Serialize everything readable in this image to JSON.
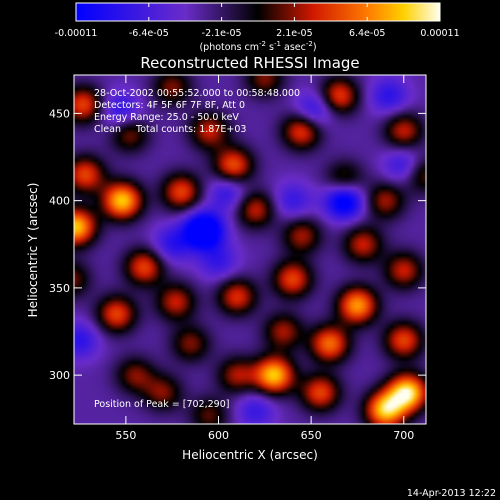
{
  "chart_data": {
    "type": "heatmap",
    "title": "Reconstructed RHESSI Image",
    "xlabel": "Heliocentric X (arcsec)",
    "ylabel": "Heliocentric Y (arcsec)",
    "xlim": [
      522,
      712
    ],
    "ylim": [
      272,
      472
    ],
    "x_ticks": [
      550,
      600,
      650,
      700
    ],
    "y_ticks": [
      300,
      350,
      400,
      450
    ],
    "colorbar": {
      "label_html": "(photons cm<tspan dy=\"-4\" font-size=\"7\">-2</tspan><tspan dy=\"4\"> s</tspan><tspan dy=\"-4\" font-size=\"7\">-1</tspan><tspan dy=\"4\"> asec</tspan><tspan dy=\"-4\" font-size=\"7\">-2</tspan><tspan dy=\"4\">)</tspan>",
      "label": "(photons cm-2 s-1 asec-2)",
      "tick_labels": [
        "-0.00011",
        "-6.4e-05",
        "-2.1e-05",
        "2.1e-05",
        "6.4e-05",
        "0.00011"
      ],
      "min": -0.00011,
      "max": 0.00011
    },
    "annotations": [
      "28-Oct-2002 00:55:52.000 to 00:58:48.000",
      "Detectors: 4F 5F 6F 7F 8F, Att 0",
      "Energy Range: 25.0 - 50.0 keV",
      "Clean     Total counts: 1.87E+03"
    ],
    "peak_label": "Position of Peak = [702,290]",
    "peak": [
      702,
      290
    ],
    "sources_xy_value": [
      [
        702,
        290,
        1.0
      ],
      [
        690,
        280,
        0.9
      ],
      [
        660,
        318,
        0.7
      ],
      [
        630,
        300,
        0.9
      ],
      [
        700,
        320,
        0.6
      ],
      [
        655,
        290,
        0.6
      ],
      [
        675,
        340,
        0.8
      ],
      [
        700,
        360,
        0.5
      ],
      [
        640,
        355,
        0.6
      ],
      [
        678,
        375,
        0.5
      ],
      [
        620,
        395,
        0.5
      ],
      [
        608,
        420,
        0.65
      ],
      [
        548,
        400,
        0.9
      ],
      [
        580,
        405,
        0.6
      ],
      [
        523,
        385,
        0.9
      ],
      [
        528,
        415,
        0.6
      ],
      [
        645,
        440,
        0.6
      ],
      [
        665,
        460,
        0.6
      ],
      [
        700,
        440,
        0.5
      ],
      [
        595,
        440,
        0.5
      ],
      [
        552,
        438,
        0.4
      ],
      [
        527,
        455,
        0.6
      ],
      [
        545,
        335,
        0.6
      ],
      [
        560,
        362,
        0.6
      ],
      [
        520,
        355,
        0.4
      ],
      [
        577,
        342,
        0.5
      ],
      [
        610,
        345,
        0.55
      ],
      [
        585,
        318,
        0.4
      ],
      [
        610,
        300,
        0.45
      ],
      [
        555,
        300,
        0.4
      ],
      [
        570,
        290,
        0.4
      ],
      [
        635,
        325,
        0.45
      ],
      [
        595,
        277,
        0.35
      ],
      [
        668,
        412,
        0.4
      ],
      [
        690,
        400,
        0.45
      ],
      [
        710,
        415,
        0.4
      ],
      [
        625,
        470,
        0.4
      ],
      [
        575,
        465,
        0.4
      ],
      [
        645,
        380,
        0.45
      ]
    ],
    "neg_sources_xy_value": [
      [
        592,
        383,
        0.9
      ],
      [
        668,
        400,
        0.7
      ],
      [
        605,
        405,
        0.35
      ],
      [
        547,
        452,
        0.35
      ],
      [
        652,
        452,
        0.4
      ],
      [
        692,
        460,
        0.35
      ],
      [
        575,
        375,
        0.35
      ],
      [
        525,
        320,
        0.35
      ],
      [
        600,
        365,
        0.3
      ],
      [
        700,
        420,
        0.35
      ],
      [
        620,
        280,
        0.3
      ],
      [
        640,
        400,
        0.3
      ]
    ]
  },
  "footer_timestamp": "14-Apr-2013 12:22"
}
